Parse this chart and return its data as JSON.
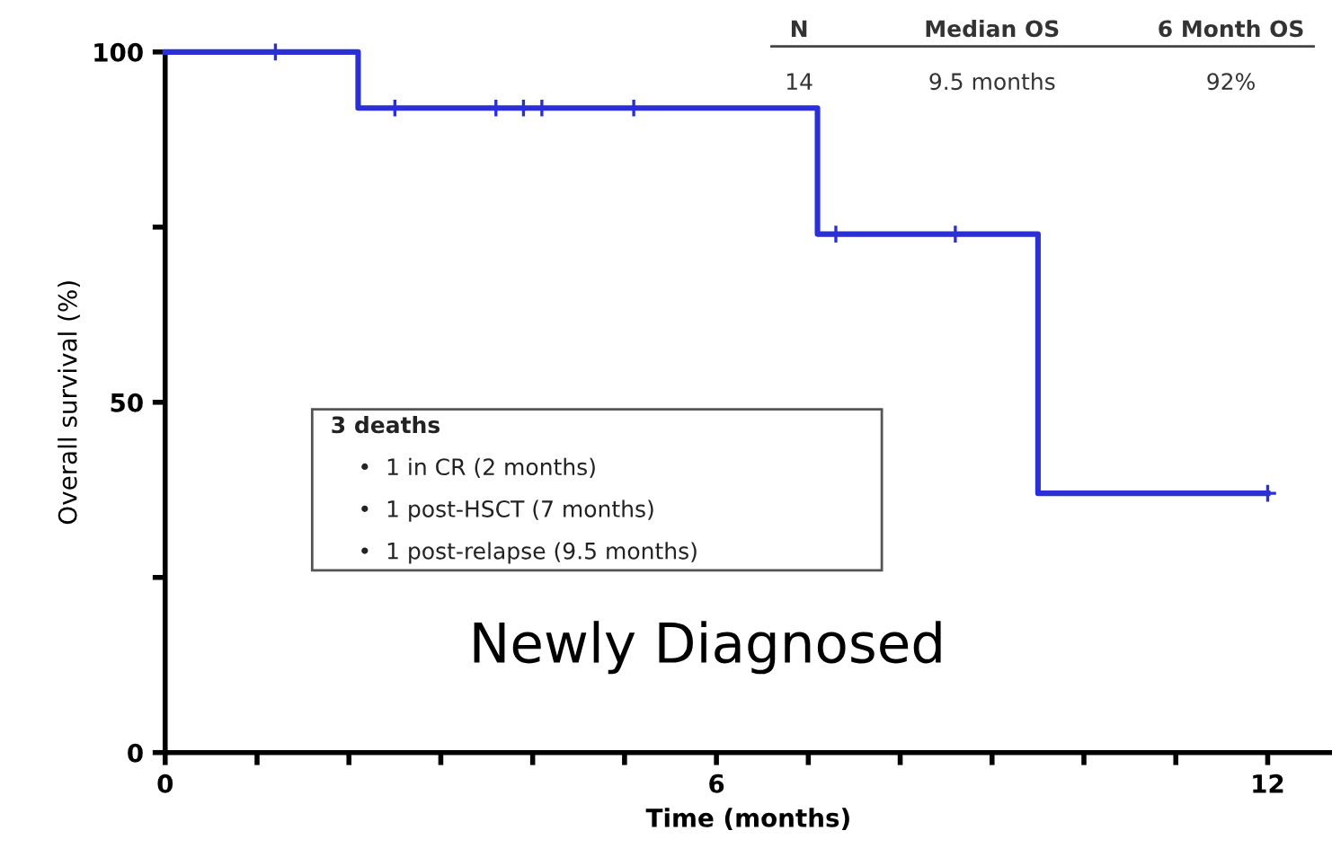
{
  "chart_data": {
    "type": "step",
    "xlabel": "Time (months)",
    "ylabel": "Overall survival (%)",
    "series": [
      {
        "color": "#2b2fd6",
        "x": [
          0,
          2.1,
          7.1,
          9.5,
          12
        ],
        "values": [
          100,
          92,
          74,
          37,
          37
        ]
      },
      {
        "type": "scatter",
        "marker": "cross",
        "color": "#2b2fd6",
        "x": [
          1.2,
          2.5,
          3.6,
          3.9,
          4.1,
          5.1,
          7.3,
          8.6,
          12
        ],
        "values": [
          100,
          92,
          92,
          92,
          92,
          92,
          74,
          74,
          37
        ]
      }
    ],
    "xlim": [
      0,
      12.7
    ],
    "ylim": [
      0,
      100
    ],
    "xticks": [
      0,
      {
        "value": 1,
        "label": null
      },
      {
        "value": 2,
        "label": null
      },
      {
        "value": 3,
        "label": null
      },
      {
        "value": 4,
        "label": null
      },
      {
        "value": 5,
        "label": null
      },
      6,
      {
        "value": 7,
        "label": null
      },
      {
        "value": 8,
        "label": null
      },
      {
        "value": 9,
        "label": null
      },
      {
        "value": 10,
        "label": null
      },
      {
        "value": 11,
        "label": null
      },
      12
    ],
    "yticks": [
      0,
      {
        "value": 25,
        "label": null
      },
      50,
      {
        "value": 75,
        "label": null
      },
      100
    ],
    "grid": false,
    "legend": false,
    "annotations": [
      "N",
      "Median OS",
      "6 Month OS",
      "14",
      "9.5 months",
      "92%",
      "3 deaths",
      "•  1 in CR (2 months)",
      "•  1 post-HSCT (7 months)",
      "•  1 post-relapse (9.5 months)",
      "Newly Diagnosed"
    ]
  }
}
